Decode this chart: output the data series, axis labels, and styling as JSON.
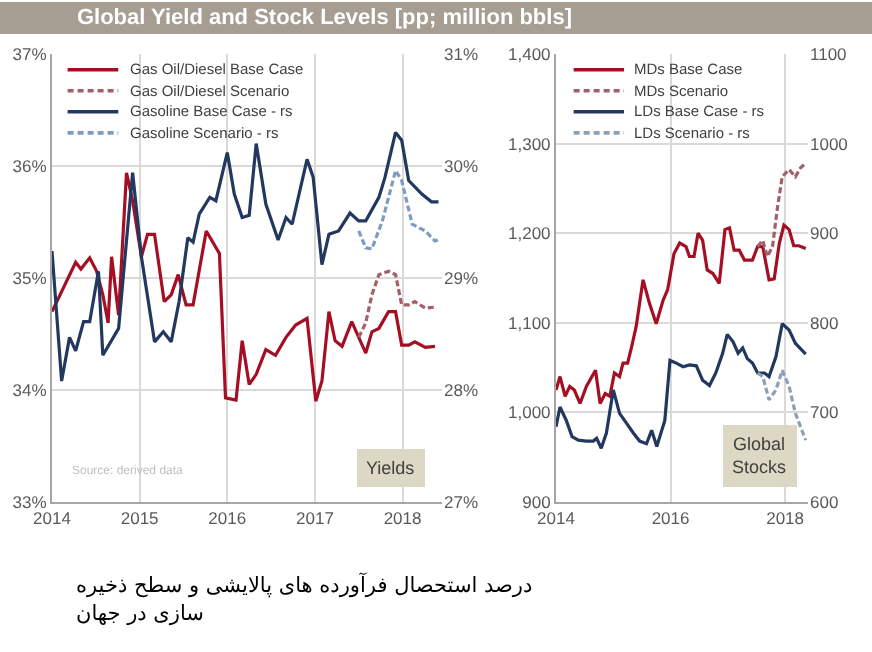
{
  "chart_data": [
    {
      "type": "line",
      "title": "Global Yield and Stock Levels [pp; million bbls]",
      "annotations": [
        "Source: derived data",
        "Yields",
        "درصد استحصال فرآورده های پالایشی و سطح ذخیره سازی در جهان"
      ],
      "xlim": [
        2014,
        2018.45
      ],
      "xticks": [
        2014,
        2015,
        2016,
        2017,
        2018
      ],
      "ylim": [
        33,
        37
      ],
      "yticks": [
        {
          "value": 33,
          "label": "33%"
        },
        {
          "value": 34,
          "label": "34%"
        },
        {
          "value": 35,
          "label": "35%"
        },
        {
          "value": 36,
          "label": "36%"
        },
        {
          "value": 37,
          "label": "37%"
        }
      ],
      "y2lim": [
        27,
        31
      ],
      "y2ticks": [
        {
          "value": 27,
          "label": "27%"
        },
        {
          "value": 28,
          "label": "28%"
        },
        {
          "value": 29,
          "label": "29%"
        },
        {
          "value": 30,
          "label": "30%"
        },
        {
          "value": 31,
          "label": "31%"
        }
      ],
      "grid": true,
      "legend": "top left",
      "series": [
        {
          "name": "Gas Oil/Diesel Base Case",
          "color": "#a50f23",
          "line_style": "solid",
          "x": [
            2014,
            2014.27,
            2014.33,
            2014.43,
            2014.51,
            2014.58,
            2014.64,
            2014.68,
            2014.76,
            2014.85,
            2014.92,
            2015.02,
            2015.09,
            2015.17,
            2015.28,
            2015.36,
            2015.44,
            2015.53,
            2015.61,
            2015.76,
            2015.91,
            2015.98,
            2016.1,
            2016.17,
            2016.25,
            2016.33,
            2016.44,
            2016.55,
            2016.67,
            2016.78,
            2016.91,
            2017.01,
            2017.08,
            2017.16,
            2017.23,
            2017.31,
            2017.42,
            2017.5,
            2017.58,
            2017.65,
            2017.73,
            2017.84,
            2017.92,
            2017.99,
            2018.07,
            2018.14,
            2018.26,
            2018.37
          ],
          "values": [
            34.7,
            35.14,
            35.08,
            35.18,
            35.06,
            34.85,
            34.6,
            35.19,
            34.67,
            35.94,
            35.69,
            35.19,
            35.39,
            35.39,
            34.79,
            34.85,
            35.03,
            34.76,
            34.76,
            35.42,
            35.22,
            33.93,
            33.91,
            34.44,
            34.05,
            34.14,
            34.36,
            34.31,
            34.47,
            34.58,
            34.64,
            33.9,
            34.08,
            34.7,
            34.44,
            34.39,
            34.61,
            34.47,
            34.33,
            34.52,
            34.55,
            34.7,
            34.7,
            34.4,
            34.4,
            34.43,
            34.38,
            34.39
          ]
        },
        {
          "name": "Gas Oil/Diesel Scenario",
          "color": "#a45f6a",
          "line_style": "dashed",
          "x": [
            2017.5,
            2017.58,
            2017.65,
            2017.73,
            2017.84,
            2017.92,
            2017.99,
            2018.07,
            2018.14,
            2018.26,
            2018.37
          ],
          "values": [
            34.47,
            34.6,
            34.85,
            35.03,
            35.06,
            35.03,
            34.76,
            34.76,
            34.79,
            34.73,
            34.74
          ]
        },
        {
          "name": "Gasoline Base Case - rs",
          "color": "#22385f",
          "line_style": "solid",
          "axis": "y2",
          "x": [
            2014,
            2014.11,
            2014.2,
            2014.27,
            2014.36,
            2014.43,
            2014.53,
            2014.58,
            2014.76,
            2014.92,
            2015.02,
            2015.17,
            2015.27,
            2015.36,
            2015.45,
            2015.55,
            2015.61,
            2015.68,
            2015.8,
            2015.87,
            2016,
            2016.08,
            2016.17,
            2016.25,
            2016.33,
            2016.44,
            2016.58,
            2016.67,
            2016.74,
            2016.91,
            2016.98,
            2017.08,
            2017.16,
            2017.27,
            2017.4,
            2017.5,
            2017.58,
            2017.73,
            2017.8,
            2017.92,
            2017.99,
            2018.07,
            2018.22,
            2018.33,
            2018.41
          ],
          "values": [
            29.24,
            28.08,
            28.47,
            28.35,
            28.61,
            28.61,
            29.06,
            28.31,
            28.55,
            29.94,
            29.19,
            28.43,
            28.52,
            28.43,
            28.79,
            29.36,
            29.32,
            29.57,
            29.72,
            29.69,
            30.12,
            29.75,
            29.54,
            29.56,
            30.2,
            29.66,
            29.34,
            29.54,
            29.48,
            30.06,
            29.9,
            29.12,
            29.39,
            29.42,
            29.58,
            29.51,
            29.51,
            29.72,
            29.9,
            30.3,
            30.23,
            29.87,
            29.75,
            29.68,
            29.68
          ]
        },
        {
          "name": "Gasoline Scenario - rs",
          "color": "#7f9bc2",
          "line_style": "dashed",
          "axis": "y2",
          "x": [
            2017.5,
            2017.58,
            2017.65,
            2017.77,
            2017.92,
            2017.99,
            2018.11,
            2018.26,
            2018.37,
            2018.41
          ],
          "values": [
            29.42,
            29.27,
            29.26,
            29.51,
            29.96,
            29.87,
            29.48,
            29.42,
            29.33,
            29.34
          ]
        }
      ]
    },
    {
      "type": "line",
      "annotations": [
        "Global\nStocks"
      ],
      "xlim": [
        2014,
        2018.4
      ],
      "xticks": [
        2014,
        2016,
        2018
      ],
      "ylim": [
        900,
        1400
      ],
      "yticks": [
        900,
        {
          "value": 1000,
          "label": "1,000"
        },
        {
          "value": 1100,
          "label": "1,100"
        },
        {
          "value": 1200,
          "label": "1,200"
        },
        {
          "value": 1300,
          "label": "1,300"
        },
        {
          "value": 1400,
          "label": "1,400"
        }
      ],
      "y2lim": [
        600,
        1100
      ],
      "y2ticks": [
        600,
        700,
        800,
        900,
        1000,
        1100
      ],
      "grid": true,
      "legend": "top left",
      "series": [
        {
          "name": "MDs Base Case",
          "color": "#a50f23",
          "line_style": "solid",
          "x": [
            2014,
            2014.07,
            2014.16,
            2014.24,
            2014.32,
            2014.42,
            2014.53,
            2014.69,
            2014.77,
            2014.86,
            2014.94,
            2015.02,
            2015.11,
            2015.17,
            2015.25,
            2015.32,
            2015.4,
            2015.52,
            2015.63,
            2015.75,
            2015.87,
            2015.95,
            2016.06,
            2016.16,
            2016.27,
            2016.33,
            2016.41,
            2016.48,
            2016.56,
            2016.64,
            2016.74,
            2016.85,
            2016.95,
            2017.03,
            2017.11,
            2017.2,
            2017.29,
            2017.43,
            2017.52,
            2017.61,
            2017.72,
            2017.81,
            2017.9,
            2017.98,
            2018.07,
            2018.15,
            2018.24,
            2018.36
          ],
          "values": [
            1025,
            1040,
            1018,
            1029,
            1025,
            1010,
            1029,
            1047,
            1010,
            1021,
            1018,
            1044,
            1040,
            1055,
            1055,
            1073,
            1096,
            1148,
            1122,
            1099,
            1125,
            1137,
            1177,
            1189,
            1185,
            1174,
            1174,
            1200,
            1192,
            1159,
            1155,
            1144,
            1204,
            1206,
            1181,
            1181,
            1170,
            1170,
            1185,
            1185,
            1148,
            1149,
            1189,
            1209,
            1204,
            1186,
            1186,
            1183
          ]
        },
        {
          "name": "MDs Scenario",
          "color": "#a45f6a",
          "line_style": "dashed",
          "x": [
            2017.52,
            2017.61,
            2017.69,
            2017.78,
            2017.87,
            2017.95,
            2018.07,
            2018.18,
            2018.27,
            2018.36
          ],
          "values": [
            1185,
            1192,
            1174,
            1185,
            1230,
            1263,
            1271,
            1263,
            1273,
            1278
          ]
        },
        {
          "name": "LDs Base Case - rs",
          "color": "#22385f",
          "line_style": "solid",
          "axis": "y2",
          "x": [
            2014,
            2014.07,
            2014.18,
            2014.28,
            2014.39,
            2014.53,
            2014.65,
            2014.71,
            2014.79,
            2014.88,
            2015,
            2015.11,
            2015.23,
            2015.35,
            2015.46,
            2015.58,
            2015.67,
            2015.76,
            2015.9,
            2015.99,
            2016.1,
            2016.22,
            2016.33,
            2016.45,
            2016.56,
            2016.68,
            2016.79,
            2016.91,
            2016.99,
            2017.09,
            2017.18,
            2017.26,
            2017.34,
            2017.43,
            2017.52,
            2017.64,
            2017.72,
            2017.84,
            2017.95,
            2018.07,
            2018.18,
            2018.36
          ],
          "values": [
            684,
            706,
            691,
            673,
            669,
            668,
            668,
            671,
            660,
            677,
            725,
            699,
            688,
            677,
            668,
            665,
            680,
            662,
            691,
            758,
            755,
            751,
            753,
            752,
            736,
            730,
            744,
            766,
            787,
            779,
            766,
            772,
            760,
            755,
            744,
            744,
            740,
            762,
            799,
            792,
            777,
            765
          ]
        },
        {
          "name": "LDs Scenario - rs",
          "color": "#8e9fb8",
          "line_style": "dashed",
          "axis": "y2",
          "x": [
            2017.52,
            2017.61,
            2017.72,
            2017.84,
            2017.95,
            2018.07,
            2018.18,
            2018.36
          ],
          "values": [
            744,
            740,
            714,
            725,
            747,
            729,
            699,
            669
          ]
        }
      ]
    }
  ]
}
